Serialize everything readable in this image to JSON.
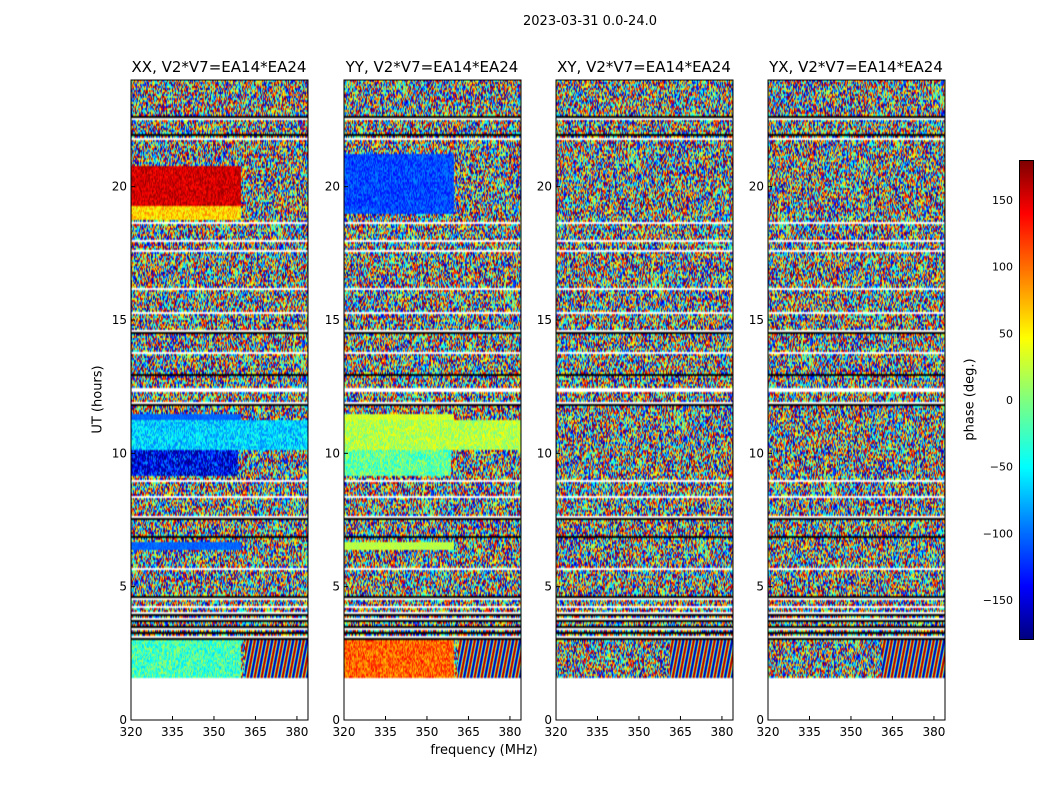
{
  "figure": {
    "suptitle": "2023-03-31 0.0-24.0",
    "xlabel": "frequency (MHz)",
    "ylabel": "UT (hours)",
    "colorbar_label": "phase (deg.)"
  },
  "chart_data": {
    "type": "heatmap",
    "title": "2023-03-31 0.0-24.0",
    "xlabel": "frequency (MHz)",
    "ylabel": "UT (hours)",
    "xlim": [
      320,
      384
    ],
    "ylim": [
      0,
      24
    ],
    "xticks": [
      "320",
      "335",
      "350",
      "365",
      "380"
    ],
    "yticks": [
      "0",
      "5",
      "10",
      "15",
      "20"
    ],
    "data_ut_range": [
      1.6,
      24.0
    ],
    "panels": [
      {
        "title": "XX, V2*V7=EA14*EA24",
        "polarization": "XX"
      },
      {
        "title": "YY, V2*V7=EA14*EA24",
        "polarization": "YY"
      },
      {
        "title": "XY, V2*V7=EA14*EA24",
        "polarization": "XY"
      },
      {
        "title": "YX, V2*V7=EA14*EA24",
        "polarization": "YX"
      }
    ],
    "colorbar": {
      "label": "phase (deg.)",
      "range": [
        -180,
        180
      ],
      "ticks": [
        "150",
        "100",
        "50",
        "0",
        "−50",
        "−100",
        "−150"
      ],
      "tick_values": [
        150,
        100,
        50,
        0,
        -50,
        -100,
        -150
      ]
    }
  }
}
